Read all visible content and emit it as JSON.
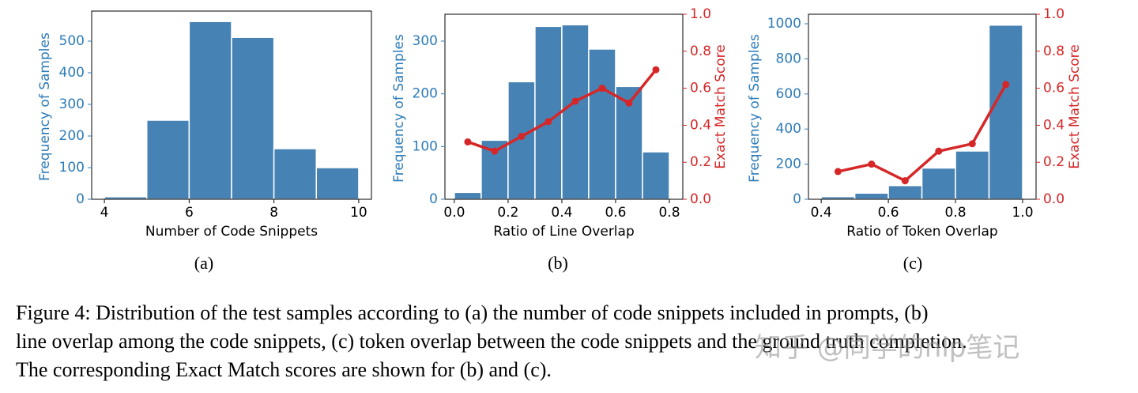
{
  "chart_data": [
    {
      "type": "histogram",
      "label": "(a)",
      "xlabel": "Number of Code Snippets",
      "ylabel": "Frequency of Samples",
      "bins": [
        4,
        5,
        6,
        7,
        8,
        9,
        10
      ],
      "values": [
        8,
        250,
        562,
        512,
        160,
        100
      ],
      "color": "#4682b4",
      "xlim": [
        3.7,
        10.3
      ],
      "xticks": [
        4,
        6,
        8,
        10
      ],
      "ylim": [
        0,
        595
      ],
      "yticks": [
        0,
        100,
        200,
        300,
        400,
        500
      ],
      "axis_color": "#2e7cb8"
    },
    {
      "type": "histogram",
      "label": "(b)",
      "xlabel": "Ratio of Line Overlap",
      "ylabel": "Frequency of Samples",
      "y2label": "Exact Match Score",
      "bins": [
        0,
        0.1,
        0.2,
        0.3,
        0.4,
        0.5,
        0.6,
        0.7,
        0.8
      ],
      "values": [
        13,
        112,
        223,
        328,
        331,
        285,
        214,
        90
      ],
      "color": "#4682b4",
      "xlim": [
        -0.035,
        0.85
      ],
      "xticks": [
        {
          "value": 0,
          "label": "0.0"
        },
        0.2,
        0.4,
        0.6,
        0.8
      ],
      "ylim": [
        0,
        351
      ],
      "yticks": [
        0,
        100,
        200,
        300
      ],
      "axis_color": "#2e7cb8",
      "y2lim": [
        0,
        1
      ],
      "y2ticks": [
        {
          "value": 0,
          "label": "0.0"
        },
        0.2,
        0.4,
        0.6,
        0.8,
        {
          "value": 1,
          "label": "1.0"
        }
      ],
      "y2_color": "#d62728",
      "line": {
        "axis": "y2",
        "color": "#d62728",
        "x": [
          0.05,
          0.15,
          0.25,
          0.35,
          0.45,
          0.55,
          0.65,
          0.75
        ],
        "values": [
          0.31,
          0.26,
          0.34,
          0.42,
          0.53,
          0.6,
          0.52,
          0.7
        ]
      }
    },
    {
      "type": "histogram",
      "label": "(c)",
      "xlabel": "Ratio of Token Overlap",
      "ylabel": "Frequency of Samples",
      "y2label": "Exact Match Score",
      "bins": [
        0.4,
        0.5,
        0.6,
        0.7,
        0.8,
        0.9,
        1.0
      ],
      "values": [
        15,
        35,
        78,
        178,
        275,
        992
      ],
      "color": "#4682b4",
      "xlim": [
        0.362,
        1.04
      ],
      "xticks": [
        0.4,
        0.6,
        0.8,
        {
          "value": 1,
          "label": "1.0"
        }
      ],
      "ylim": [
        0,
        1054
      ],
      "yticks": [
        0,
        200,
        400,
        600,
        800,
        1000
      ],
      "axis_color": "#2e7cb8",
      "y2lim": [
        0,
        1
      ],
      "y2ticks": [
        {
          "value": 0,
          "label": "0.0"
        },
        0.2,
        0.4,
        0.6,
        0.8,
        {
          "value": 1,
          "label": "1.0"
        }
      ],
      "y2_color": "#d62728",
      "line": {
        "axis": "y2",
        "color": "#d62728",
        "x": [
          0.45,
          0.55,
          0.65,
          0.75,
          0.85,
          0.95
        ],
        "values": [
          0.15,
          0.19,
          0.1,
          0.26,
          0.3,
          0.62
        ]
      }
    }
  ],
  "caption": [
    "Figure 4: Distribution of the test samples according to (a) the number of code snippets included in prompts, (b)",
    "line overlap among the code snippets, (c) token overlap between the code snippets and the ground truth completion.",
    "The corresponding Exact Match scores are shown for (b) and (c)."
  ],
  "watermark": "知乎 @同学的nlp笔记"
}
